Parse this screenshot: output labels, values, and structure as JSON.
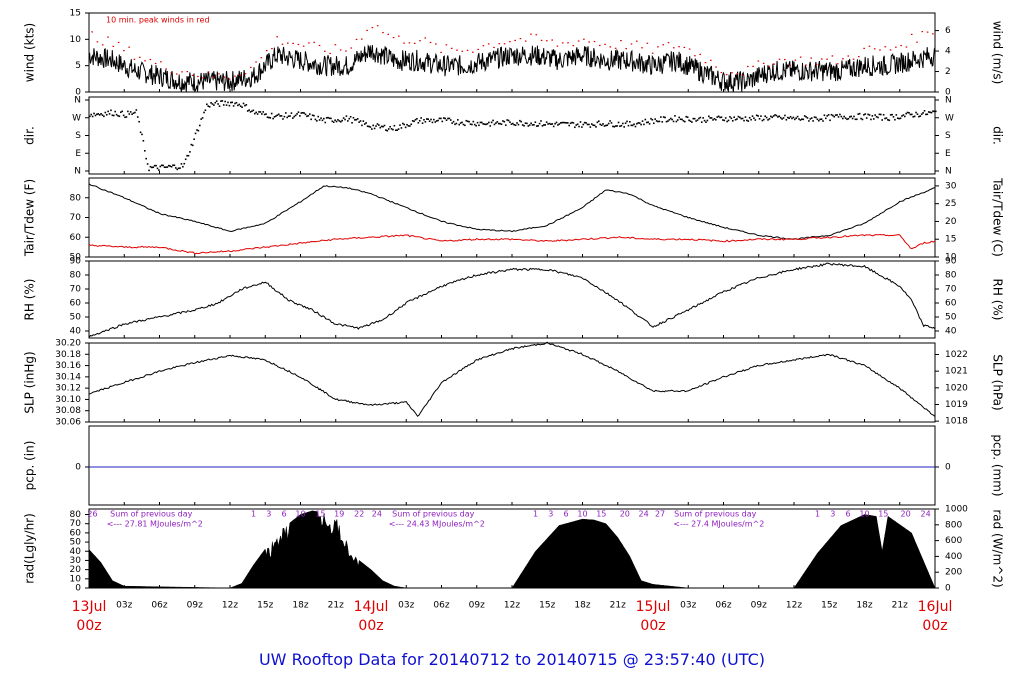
{
  "footer": {
    "title": "UW Rooftop Data for 20140712  to  20140715 @ 23:57:40  (UTC)"
  },
  "annotation": {
    "peak_note": "10 min. peak winds in red"
  },
  "colors": {
    "axis": "#000000",
    "peak": "#e00000",
    "dewpoint": "#e00000",
    "precip": "#2020c0",
    "radtext": "#9020c0",
    "datelabel": "#e00000",
    "title": "#1010d0"
  },
  "time_axis": {
    "tick_labels": [
      "03z",
      "06z",
      "09z",
      "12z",
      "15z",
      "18z",
      "21z",
      "03z",
      "06z",
      "09z",
      "12z",
      "15z",
      "18z",
      "21z",
      "03z",
      "06z",
      "09z",
      "12z",
      "15z",
      "18z",
      "21z"
    ],
    "tick_hours": [
      3,
      6,
      9,
      12,
      15,
      18,
      21,
      27,
      30,
      33,
      36,
      39,
      42,
      45,
      51,
      54,
      57,
      60,
      63,
      66,
      69
    ],
    "date_labels": [
      {
        "date": "13Jul",
        "time": "00z",
        "hour": 0
      },
      {
        "date": "14Jul",
        "time": "00z",
        "hour": 24
      },
      {
        "date": "15Jul",
        "time": "00z",
        "hour": 48
      },
      {
        "date": "16Jul",
        "time": "00z",
        "hour": 72
      }
    ]
  },
  "rad_day_labels": {
    "days": [
      {
        "hour_start": 0,
        "nums": [
          [
            "26",
            0.3
          ]
        ]
      },
      {
        "hour_start": 0,
        "nums": [
          [
            "1",
            14
          ],
          [
            "3",
            15.3
          ],
          [
            "6",
            16.6
          ],
          [
            "10",
            18.0
          ],
          [
            "15",
            19.7
          ],
          [
            "19",
            21.3
          ],
          [
            "22",
            23.0
          ],
          [
            "24",
            24.5
          ]
        ]
      },
      {
        "hour_start": 24,
        "nums": [
          [
            "1",
            38
          ],
          [
            "3",
            39.3
          ],
          [
            "6",
            40.6
          ],
          [
            "10",
            42.0
          ],
          [
            "15",
            43.6
          ],
          [
            "20",
            45.6
          ],
          [
            "24",
            47.2
          ],
          [
            "27",
            48.6
          ]
        ]
      },
      {
        "hour_start": 48,
        "nums": [
          [
            "1",
            62
          ],
          [
            "3",
            63.3
          ],
          [
            "6",
            64.6
          ],
          [
            "10",
            66.0
          ],
          [
            "15",
            67.6
          ],
          [
            "20",
            69.5
          ],
          [
            "24",
            71.2
          ]
        ]
      }
    ],
    "sum_label": "Sum of previous day",
    "sums": [
      {
        "hour": 5.0,
        "sum_text": "<--- 27.81 MJoules/m^2"
      },
      {
        "hour": 29.0,
        "sum_text": "<--- 24.43 MJoules/m^2"
      },
      {
        "hour": 53.0,
        "sum_text": "<--- 27.4 MJoules/m^2"
      }
    ]
  },
  "chart_data": [
    {
      "type": "line",
      "panel": "wind",
      "ylabel_left": "wind (kts)",
      "ylabel_right": "wind (m/s)",
      "ylim": [
        0,
        15
      ],
      "yticks_left": [
        0,
        5,
        10,
        15
      ],
      "yticks_right": [
        0,
        2,
        4,
        6
      ],
      "series": [
        {
          "name": "wind speed",
          "x": [
            0,
            2,
            4,
            6,
            8,
            10,
            12,
            14,
            16,
            18,
            20,
            22,
            24,
            26,
            28,
            30,
            32,
            34,
            36,
            38,
            40,
            42,
            44,
            46,
            48,
            50,
            52,
            54,
            56,
            58,
            60,
            62,
            64,
            66,
            68,
            70,
            72
          ],
          "y": [
            7,
            6,
            4,
            3,
            2,
            2,
            2,
            3,
            7,
            6,
            5,
            5,
            8,
            6,
            6,
            5,
            5,
            6,
            7,
            7,
            6,
            7,
            6,
            6,
            5,
            6,
            4,
            2,
            2,
            4,
            4,
            4,
            4,
            5,
            5,
            6,
            7
          ]
        },
        {
          "name": "10 min. peak winds",
          "x": [
            0,
            2,
            4,
            6,
            8,
            10,
            12,
            14,
            16,
            18,
            20,
            22,
            24,
            26,
            28,
            30,
            32,
            34,
            36,
            38,
            40,
            42,
            44,
            46,
            48,
            50,
            52,
            54,
            56,
            58,
            60,
            62,
            64,
            66,
            68,
            70,
            72
          ],
          "y": [
            11,
            9,
            7,
            5,
            4,
            3,
            3,
            5,
            10,
            9,
            8,
            8,
            13,
            10,
            10,
            8,
            8,
            9,
            10,
            10,
            9,
            10,
            9,
            9,
            8,
            9,
            7,
            4,
            4,
            6,
            6,
            6,
            6,
            8,
            8,
            10,
            12
          ]
        }
      ]
    },
    {
      "type": "scatter",
      "panel": "dir",
      "ylabel_left": "dir.",
      "ylabel_right": "dir.",
      "ytick_labels": [
        "N",
        "E",
        "S",
        "W",
        "N"
      ],
      "yticks_deg": [
        0,
        90,
        180,
        270,
        360
      ],
      "series": [
        {
          "name": "direction",
          "x": [
            0,
            2,
            3,
            4,
            5,
            6,
            8,
            10,
            12,
            13,
            14,
            16,
            18,
            20,
            22,
            24,
            26,
            28,
            30,
            32,
            34,
            36,
            38,
            40,
            42,
            44,
            46,
            48,
            50,
            52,
            54,
            56,
            58,
            60,
            62,
            64,
            66,
            68,
            70,
            72
          ],
          "y": [
            290,
            300,
            290,
            300,
            20,
            20,
            30,
            340,
            350,
            340,
            300,
            280,
            290,
            260,
            270,
            230,
            220,
            260,
            260,
            250,
            245,
            250,
            245,
            240,
            240,
            245,
            240,
            260,
            270,
            265,
            270,
            270,
            275,
            270,
            270,
            280,
            280,
            275,
            290,
            300
          ]
        }
      ]
    },
    {
      "type": "line",
      "panel": "temp",
      "ylabel_left": "Tair/Tdew (F)",
      "ylabel_right": "Tair/Tdew (C)",
      "ylim": [
        50,
        90
      ],
      "yticks_left": [
        50,
        60,
        70,
        80
      ],
      "yticks_right": [
        10,
        15,
        20,
        25,
        30
      ],
      "series": [
        {
          "name": "Tair",
          "x": [
            0,
            3,
            6,
            9,
            12,
            15,
            18,
            20,
            22,
            24,
            27,
            30,
            33,
            36,
            39,
            42,
            44,
            46,
            48,
            51,
            54,
            57,
            60,
            63,
            66,
            69,
            72
          ],
          "y": [
            87,
            80,
            72,
            68,
            63,
            67,
            78,
            86,
            85,
            82,
            75,
            68,
            64,
            63,
            66,
            75,
            84,
            82,
            76,
            70,
            65,
            61,
            59,
            61,
            67,
            78,
            85
          ]
        },
        {
          "name": "Tdew",
          "x": [
            0,
            3,
            6,
            9,
            12,
            15,
            18,
            21,
            24,
            27,
            30,
            33,
            36,
            39,
            42,
            45,
            48,
            51,
            54,
            57,
            60,
            63,
            66,
            69,
            70,
            71,
            72
          ],
          "y": [
            56,
            55,
            55,
            52,
            53,
            55,
            57,
            59,
            60,
            61,
            58,
            59,
            59,
            58,
            59,
            60,
            59,
            59,
            58,
            59,
            59,
            60,
            61,
            61,
            54,
            57,
            58
          ]
        }
      ]
    },
    {
      "type": "line",
      "panel": "rh",
      "ylabel_left": "RH (%)",
      "ylabel_right": "RH (%)",
      "ylim": [
        35,
        90
      ],
      "yticks": [
        40,
        50,
        60,
        70,
        80,
        90
      ],
      "series": [
        {
          "name": "RH",
          "x": [
            0,
            3,
            6,
            9,
            11,
            13,
            15,
            17,
            19,
            21,
            23,
            25,
            27,
            30,
            33,
            36,
            39,
            42,
            45,
            48,
            51,
            54,
            57,
            60,
            63,
            66,
            69,
            70,
            71,
            72
          ],
          "y": [
            36,
            45,
            50,
            55,
            60,
            70,
            75,
            62,
            55,
            45,
            42,
            48,
            60,
            72,
            80,
            84,
            84,
            78,
            62,
            43,
            55,
            68,
            78,
            84,
            88,
            86,
            72,
            62,
            44,
            42
          ]
        }
      ]
    },
    {
      "type": "line",
      "panel": "slp",
      "ylabel_left": "SLP (inHg)",
      "ylabel_right": "SLP (hPa)",
      "ylim": [
        30.06,
        30.2
      ],
      "yticks_left": [
        30.06,
        30.08,
        30.1,
        30.12,
        30.14,
        30.16,
        30.18,
        30.2
      ],
      "yticks_right": [
        1018,
        1019,
        1020,
        1021,
        1022
      ],
      "series": [
        {
          "name": "SLP",
          "x": [
            0,
            3,
            6,
            9,
            12,
            15,
            18,
            21,
            24,
            27,
            28,
            30,
            33,
            36,
            39,
            42,
            45,
            48,
            51,
            54,
            57,
            60,
            63,
            66,
            69,
            72
          ],
          "y": [
            30.11,
            30.13,
            30.15,
            30.165,
            30.178,
            30.17,
            30.14,
            30.1,
            30.09,
            30.095,
            30.07,
            30.13,
            30.17,
            30.19,
            30.2,
            30.18,
            30.15,
            30.115,
            30.115,
            30.14,
            30.16,
            30.17,
            30.18,
            30.16,
            30.12,
            30.07
          ]
        }
      ]
    },
    {
      "type": "line",
      "panel": "pcp",
      "ylabel_left": "pcp. (in)",
      "ylabel_right": "pcp. (mm)",
      "yticks_left": [
        0
      ],
      "yticks_right": [
        0
      ],
      "series": [
        {
          "name": "precip",
          "x": [
            0,
            72
          ],
          "y": [
            0,
            0
          ]
        }
      ]
    },
    {
      "type": "area",
      "panel": "rad",
      "ylabel_left": "rad(Lgly/hr)",
      "ylabel_right": "rad (W/m^2)",
      "ylim": [
        0,
        86
      ],
      "yticks_left": [
        0,
        10,
        20,
        30,
        40,
        50,
        60,
        70,
        80
      ],
      "yticks_right": [
        0,
        200,
        400,
        600,
        800,
        1000
      ],
      "series": [
        {
          "name": "radiation",
          "x": [
            0,
            1,
            2,
            3,
            12,
            13,
            14,
            16,
            18,
            19,
            20,
            20.5,
            21,
            21.5,
            22,
            23,
            24,
            25,
            26,
            27,
            36,
            38,
            40,
            42,
            43,
            44,
            45,
            46,
            47,
            48,
            51,
            60,
            62,
            64,
            66,
            67,
            67.5,
            68,
            70,
            72
          ],
          "y": [
            42,
            28,
            8,
            2,
            0,
            5,
            25,
            60,
            80,
            84,
            82,
            70,
            84,
            60,
            55,
            30,
            20,
            8,
            2,
            0,
            0,
            40,
            68,
            75,
            74,
            70,
            55,
            35,
            8,
            4,
            0,
            0,
            38,
            68,
            80,
            78,
            40,
            78,
            60,
            0
          ]
        }
      ]
    }
  ]
}
